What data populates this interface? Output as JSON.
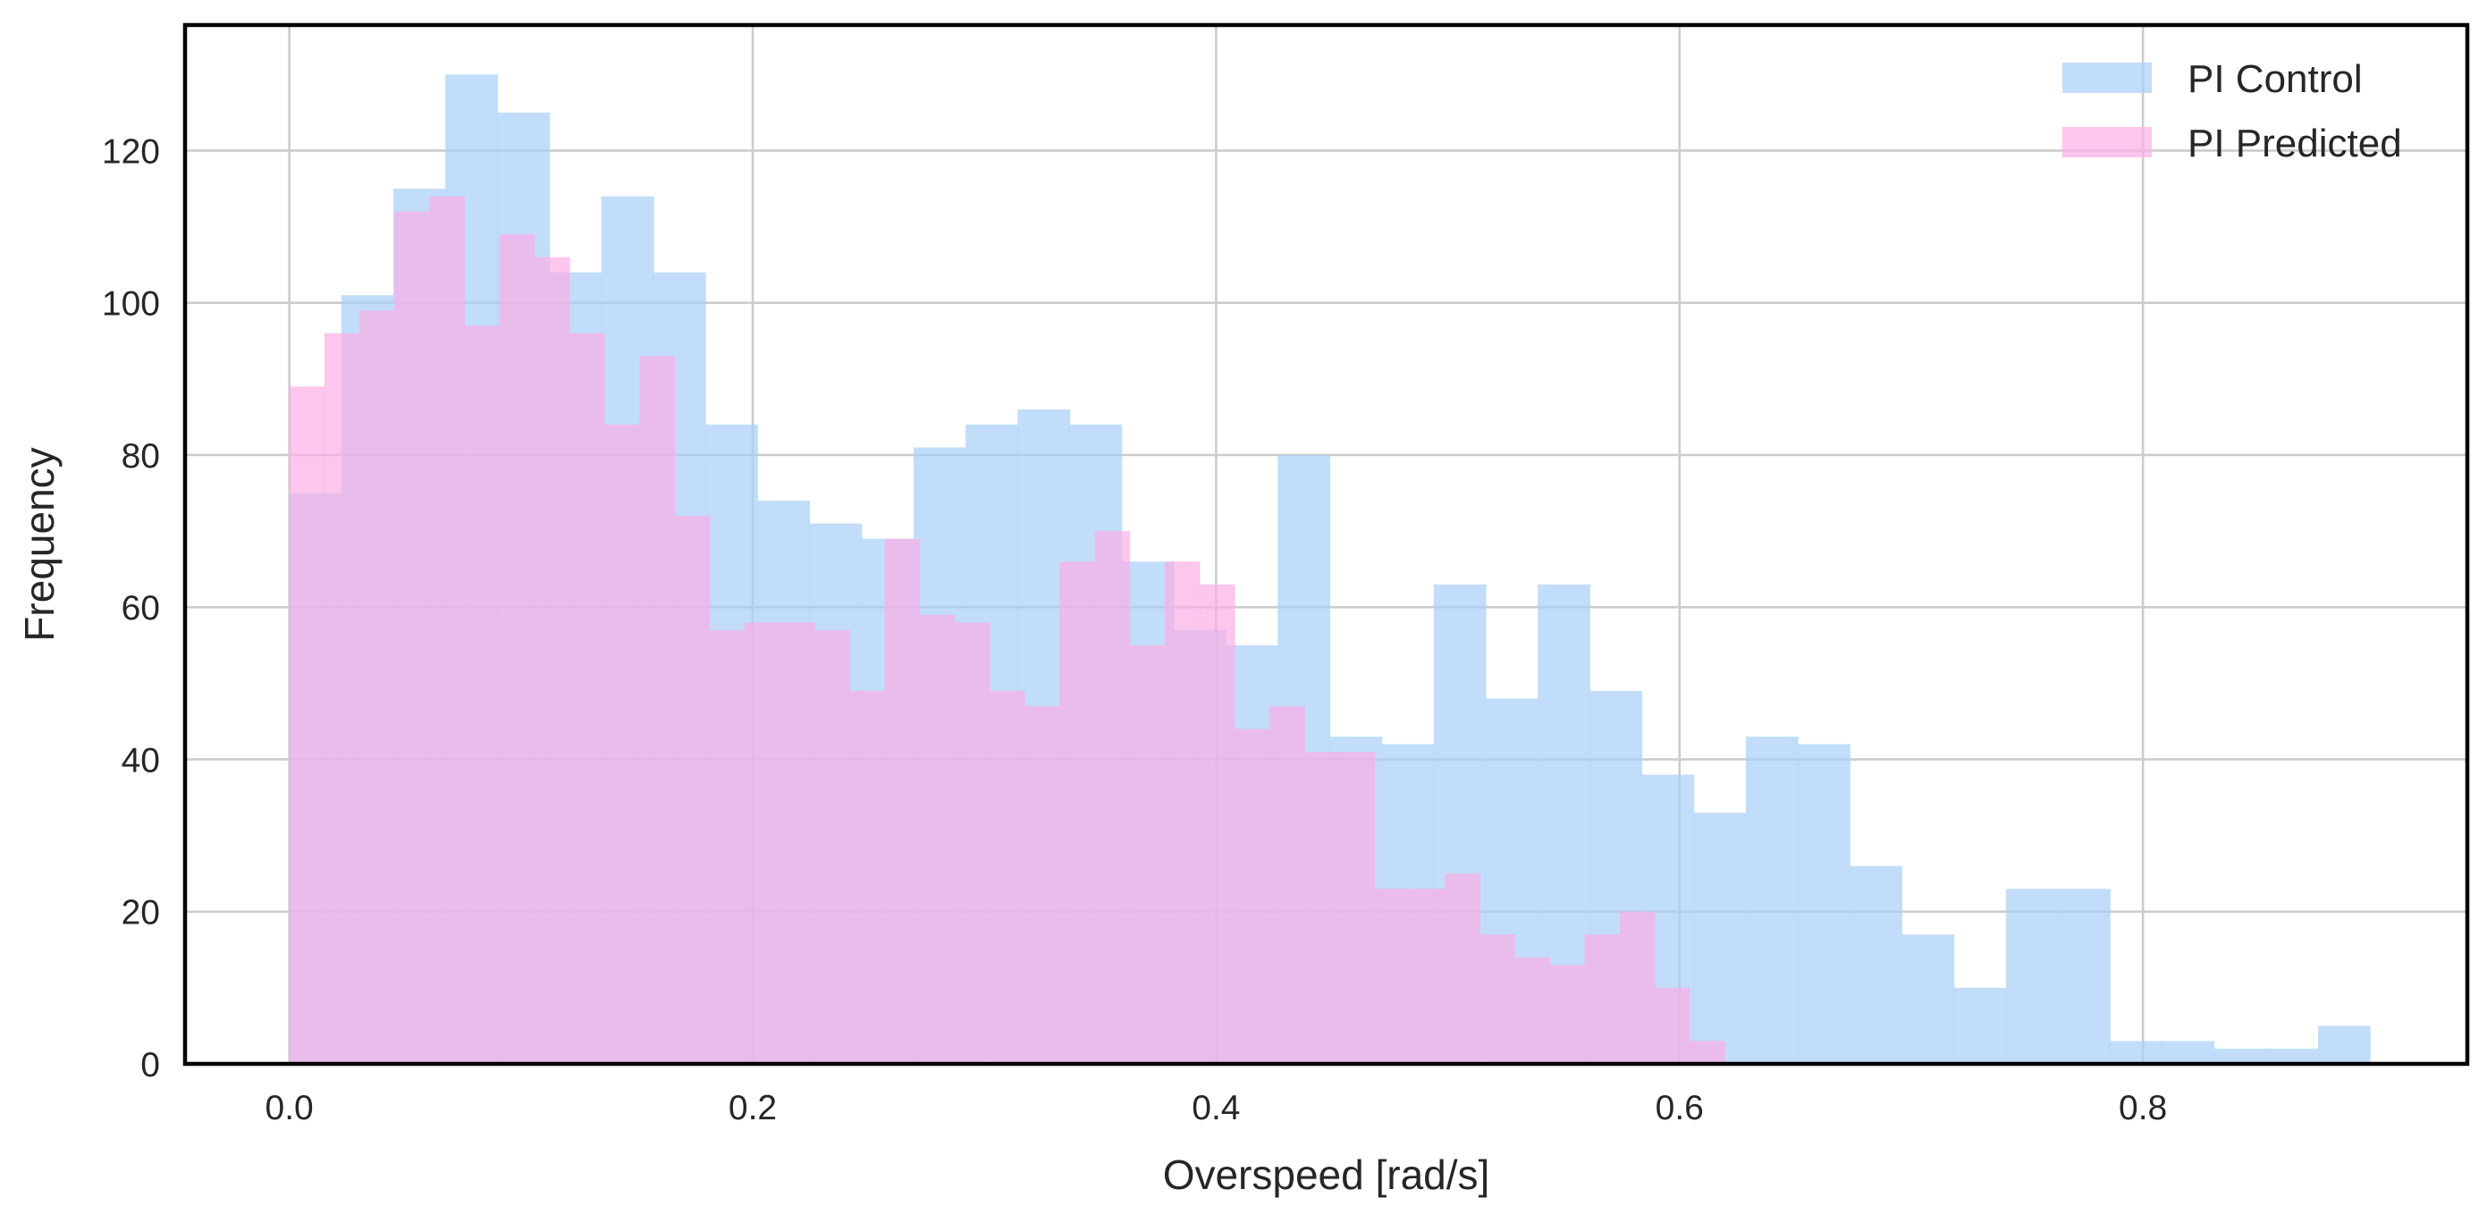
{
  "chart_data": {
    "type": "histogram",
    "xlabel": "Overspeed [rad/s]",
    "ylabel": "Frequency",
    "xlim": [
      -0.045,
      0.94
    ],
    "ylim": [
      0,
      136.5
    ],
    "xticks": [
      0.0,
      0.2,
      0.4,
      0.6,
      0.8
    ],
    "xtick_labels": [
      "0.0",
      "0.2",
      "0.4",
      "0.6",
      "0.8"
    ],
    "yticks": [
      0,
      20,
      40,
      60,
      80,
      100,
      120
    ],
    "ytick_labels": [
      "0",
      "20",
      "40",
      "60",
      "80",
      "100",
      "120"
    ],
    "grid": true,
    "legend_position": "top-right",
    "series": [
      {
        "name": "PI Control",
        "color": "#a8cff8",
        "opacity": 0.7,
        "bin_start": 0.0,
        "bin_width": 0.02245,
        "counts": [
          75,
          101,
          115,
          130,
          125,
          104,
          114,
          104,
          84,
          74,
          71,
          69,
          81,
          84,
          86,
          84,
          66,
          57,
          55,
          80,
          43,
          42,
          63,
          48,
          63,
          49,
          38,
          33,
          43,
          42,
          26,
          17,
          10,
          23,
          23,
          3,
          3,
          2,
          2,
          5
        ]
      },
      {
        "name": "PI Predicted",
        "color": "#fbaee6",
        "opacity": 0.7,
        "bin_start": 0.0,
        "bin_width": 0.01511,
        "counts": [
          89,
          96,
          99,
          112,
          114,
          97,
          109,
          106,
          96,
          84,
          93,
          72,
          57,
          58,
          58,
          57,
          49,
          69,
          59,
          58,
          49,
          47,
          66,
          70,
          55,
          66,
          63,
          44,
          47,
          41,
          41,
          23,
          23,
          25,
          17,
          14,
          13,
          17,
          20,
          10,
          3
        ]
      }
    ]
  }
}
